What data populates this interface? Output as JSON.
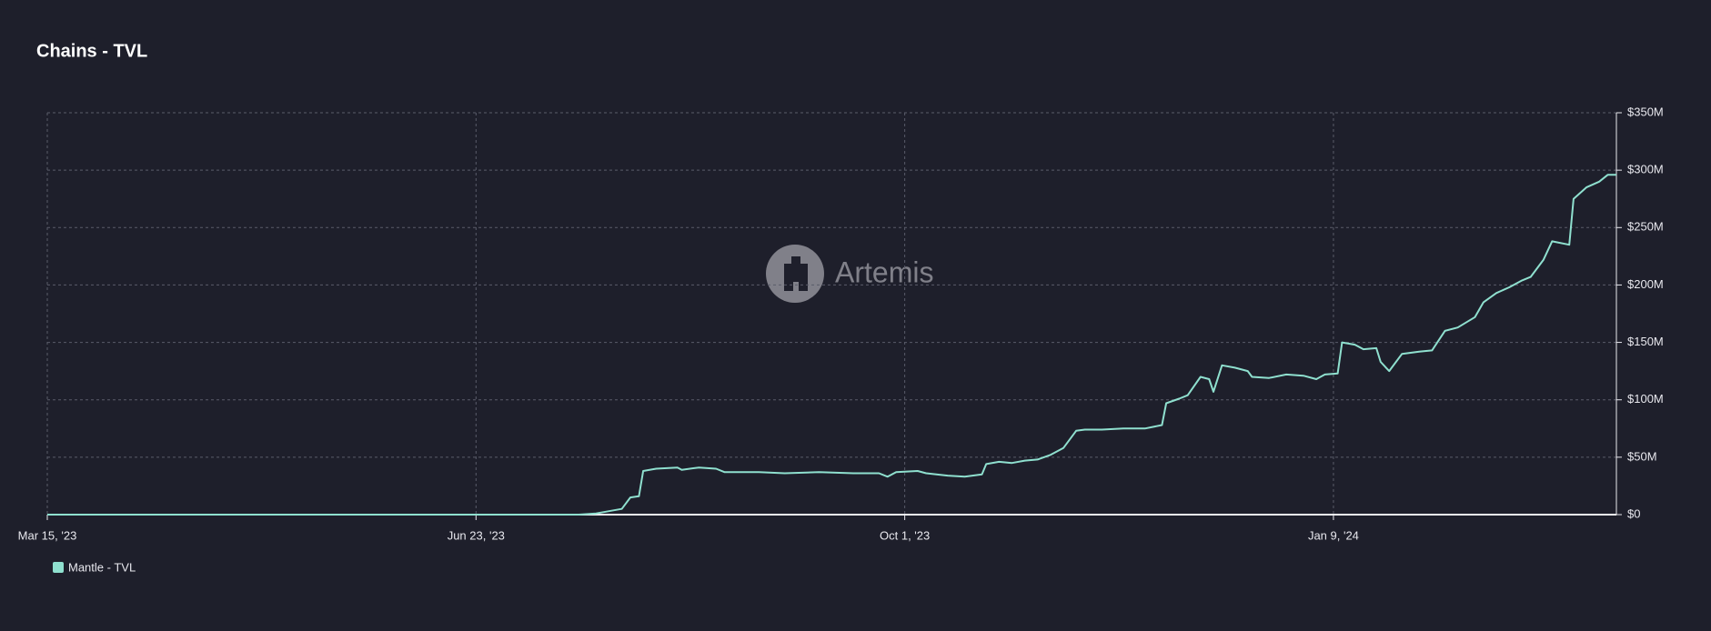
{
  "chart_data": {
    "type": "line",
    "title": "Chains - TVL",
    "watermark": "Artemis",
    "x": [
      "2023-03-15",
      "2023-07-17",
      "2023-07-21",
      "2023-07-27",
      "2023-07-29",
      "2023-07-31",
      "2023-08-01",
      "2023-08-04",
      "2023-08-09",
      "2023-08-10",
      "2023-08-14",
      "2023-08-18",
      "2023-08-20",
      "2023-08-23",
      "2023-08-28",
      "2023-09-03",
      "2023-09-11",
      "2023-09-19",
      "2023-09-25",
      "2023-09-27",
      "2023-09-29",
      "2023-10-04",
      "2023-10-06",
      "2023-10-11",
      "2023-10-15",
      "2023-10-19",
      "2023-10-20",
      "2023-10-23",
      "2023-10-26",
      "2023-10-29",
      "2023-11-01",
      "2023-11-04",
      "2023-11-07",
      "2023-11-10",
      "2023-11-12",
      "2023-11-16",
      "2023-11-21",
      "2023-11-26",
      "2023-11-30",
      "2023-12-01",
      "2023-12-04",
      "2023-12-06",
      "2023-12-09",
      "2023-12-11",
      "2023-12-12",
      "2023-12-14",
      "2023-12-17",
      "2023-12-20",
      "2023-12-21",
      "2023-12-25",
      "2023-12-29",
      "2024-01-02",
      "2024-01-05",
      "2024-01-07",
      "2024-01-10",
      "2024-01-11",
      "2024-01-14",
      "2024-01-16",
      "2024-01-19",
      "2024-01-20",
      "2024-01-22",
      "2024-01-25",
      "2024-01-29",
      "2024-02-01",
      "2024-02-04",
      "2024-02-07",
      "2024-02-11",
      "2024-02-13",
      "2024-02-16",
      "2024-02-19",
      "2024-02-22",
      "2024-02-24",
      "2024-02-27",
      "2024-02-29",
      "2024-03-04",
      "2024-03-05",
      "2024-03-08",
      "2024-03-11",
      "2024-03-13",
      "2024-03-15"
    ],
    "series": [
      {
        "name": "Mantle - TVL",
        "color": "#8fe0cf",
        "values": [
          0,
          0,
          1,
          5,
          15,
          16,
          38,
          40,
          41,
          39,
          41,
          40,
          37,
          37,
          37,
          36,
          37,
          36,
          36,
          33,
          37,
          38,
          36,
          34,
          33,
          35,
          44,
          46,
          45,
          47,
          48,
          52,
          58,
          73,
          74,
          74,
          75,
          75,
          78,
          97,
          101,
          104,
          120,
          118,
          107,
          130,
          128,
          125,
          120,
          119,
          122,
          121,
          118,
          122,
          123,
          150,
          148,
          144,
          145,
          133,
          125,
          140,
          142,
          143,
          160,
          163,
          172,
          185,
          193,
          198,
          204,
          207,
          222,
          238,
          235,
          275,
          285,
          290,
          296,
          296
        ]
      }
    ],
    "xlim": [
      "2023-03-15",
      "2024-03-15"
    ],
    "xticks": [
      {
        "value": "2023-03-15",
        "label": "Mar 15, '23"
      },
      {
        "value": "2023-06-23",
        "label": "Jun 23, '23"
      },
      {
        "value": "2023-10-01",
        "label": "Oct 1, '23"
      },
      {
        "value": "2024-01-09",
        "label": "Jan 9, '24"
      }
    ],
    "ylim": [
      0,
      350
    ],
    "yticks": [
      {
        "value": 0,
        "label": "$0"
      },
      {
        "value": 50,
        "label": "$50M"
      },
      {
        "value": 100,
        "label": "$100M"
      },
      {
        "value": 150,
        "label": "$150M"
      },
      {
        "value": 200,
        "label": "$200M"
      },
      {
        "value": 250,
        "label": "$250M"
      },
      {
        "value": 300,
        "label": "$300M"
      },
      {
        "value": 350,
        "label": "$350M"
      }
    ],
    "grid": true
  }
}
